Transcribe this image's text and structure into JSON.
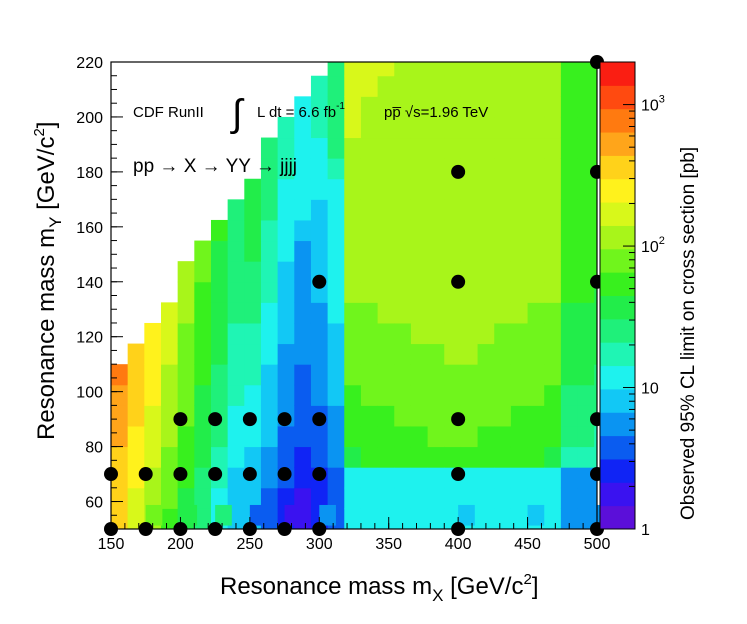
{
  "chart_data": {
    "type": "heatmap",
    "xlabel": "Resonance mass m",
    "xlabel_sub": "X",
    "xlabel_unit": "[GeV/c",
    "xlabel_unit_sup": "2",
    "xlabel_unit_end": "]",
    "ylabel": "Resonance mass m",
    "ylabel_sub": "Y",
    "ylabel_unit": "[GeV/c",
    "ylabel_unit_sup": "2",
    "ylabel_unit_end": "]",
    "xlim": [
      150,
      500
    ],
    "ylim": [
      50,
      220
    ],
    "x_ticks": [
      "150",
      "200",
      "250",
      "300",
      "350",
      "400",
      "450",
      "500"
    ],
    "y_ticks": [
      "60",
      "80",
      "100",
      "120",
      "140",
      "160",
      "180",
      "200",
      "220"
    ],
    "colorbar": {
      "title": "Observed 95% CL limit on cross section [pb]",
      "scale": "log",
      "range": [
        1,
        2000
      ],
      "tick_labels": [
        {
          "value": 1,
          "text": "1"
        },
        {
          "value": 10,
          "text": "10"
        },
        {
          "value": 100,
          "text": "10",
          "sup": "2"
        },
        {
          "value": 1000,
          "text": "10",
          "sup": "3"
        }
      ],
      "palette": [
        "#5b0fd9",
        "#3a12f0",
        "#1024f5",
        "#0a5cf0",
        "#0a94f2",
        "#12c8f5",
        "#1ef2ee",
        "#1ff5b4",
        "#1ff07a",
        "#22ed4a",
        "#38f01e",
        "#70f51c",
        "#a8f51a",
        "#d8f81a",
        "#fff21c",
        "#ffd21a",
        "#ffa51a",
        "#ff7a10",
        "#ff4a10",
        "#fa1e12"
      ]
    },
    "annotation_line1_prefix": "CDF RunII",
    "annotation_integral": "∫",
    "annotation_line1_lumi": "L dt = 6.6 fb",
    "annotation_line1_lumi_sup": "-1",
    "annotation_line1_beam": "pp̅ √s=1.96 TeV",
    "annotation_line2": "pp → X → YY → jjjj",
    "model": {
      "x_edges_step": 12,
      "y_edges_step": 7.5,
      "diagonal_slope": 1.0,
      "diagonal_offset": -95,
      "description": "limit value grid"
    },
    "grid_values": [
      {
        "x": 150,
        "y": 55,
        "v": 300
      },
      {
        "x": 162,
        "y": 55,
        "v": 150
      },
      {
        "x": 175,
        "y": 55,
        "v": 70
      },
      {
        "x": 200,
        "y": 55,
        "v": 40
      },
      {
        "x": 225,
        "y": 55,
        "v": 25
      },
      {
        "x": 250,
        "y": 55,
        "v": 4
      },
      {
        "x": 275,
        "y": 55,
        "v": 2
      },
      {
        "x": 300,
        "y": 55,
        "v": 6
      },
      {
        "x": 350,
        "y": 55,
        "v": 12
      },
      {
        "x": 400,
        "y": 55,
        "v": 8
      },
      {
        "x": 450,
        "y": 55,
        "v": 9
      },
      {
        "x": 495,
        "y": 55,
        "v": 6
      }
    ],
    "series": [
      {
        "name": "mass points",
        "points": [
          {
            "x": 150,
            "y": 50
          },
          {
            "x": 175,
            "y": 50
          },
          {
            "x": 200,
            "y": 50
          },
          {
            "x": 225,
            "y": 50
          },
          {
            "x": 250,
            "y": 50
          },
          {
            "x": 275,
            "y": 50
          },
          {
            "x": 300,
            "y": 50
          },
          {
            "x": 400,
            "y": 50
          },
          {
            "x": 500,
            "y": 50
          },
          {
            "x": 150,
            "y": 70
          },
          {
            "x": 175,
            "y": 70
          },
          {
            "x": 200,
            "y": 70
          },
          {
            "x": 225,
            "y": 70
          },
          {
            "x": 250,
            "y": 70
          },
          {
            "x": 275,
            "y": 70
          },
          {
            "x": 300,
            "y": 70
          },
          {
            "x": 400,
            "y": 70
          },
          {
            "x": 500,
            "y": 70
          },
          {
            "x": 200,
            "y": 90
          },
          {
            "x": 225,
            "y": 90
          },
          {
            "x": 250,
            "y": 90
          },
          {
            "x": 275,
            "y": 90
          },
          {
            "x": 300,
            "y": 90
          },
          {
            "x": 400,
            "y": 90
          },
          {
            "x": 500,
            "y": 90
          },
          {
            "x": 300,
            "y": 140
          },
          {
            "x": 400,
            "y": 140
          },
          {
            "x": 500,
            "y": 140
          },
          {
            "x": 400,
            "y": 180
          },
          {
            "x": 500,
            "y": 180
          },
          {
            "x": 500,
            "y": 220
          }
        ]
      }
    ]
  }
}
